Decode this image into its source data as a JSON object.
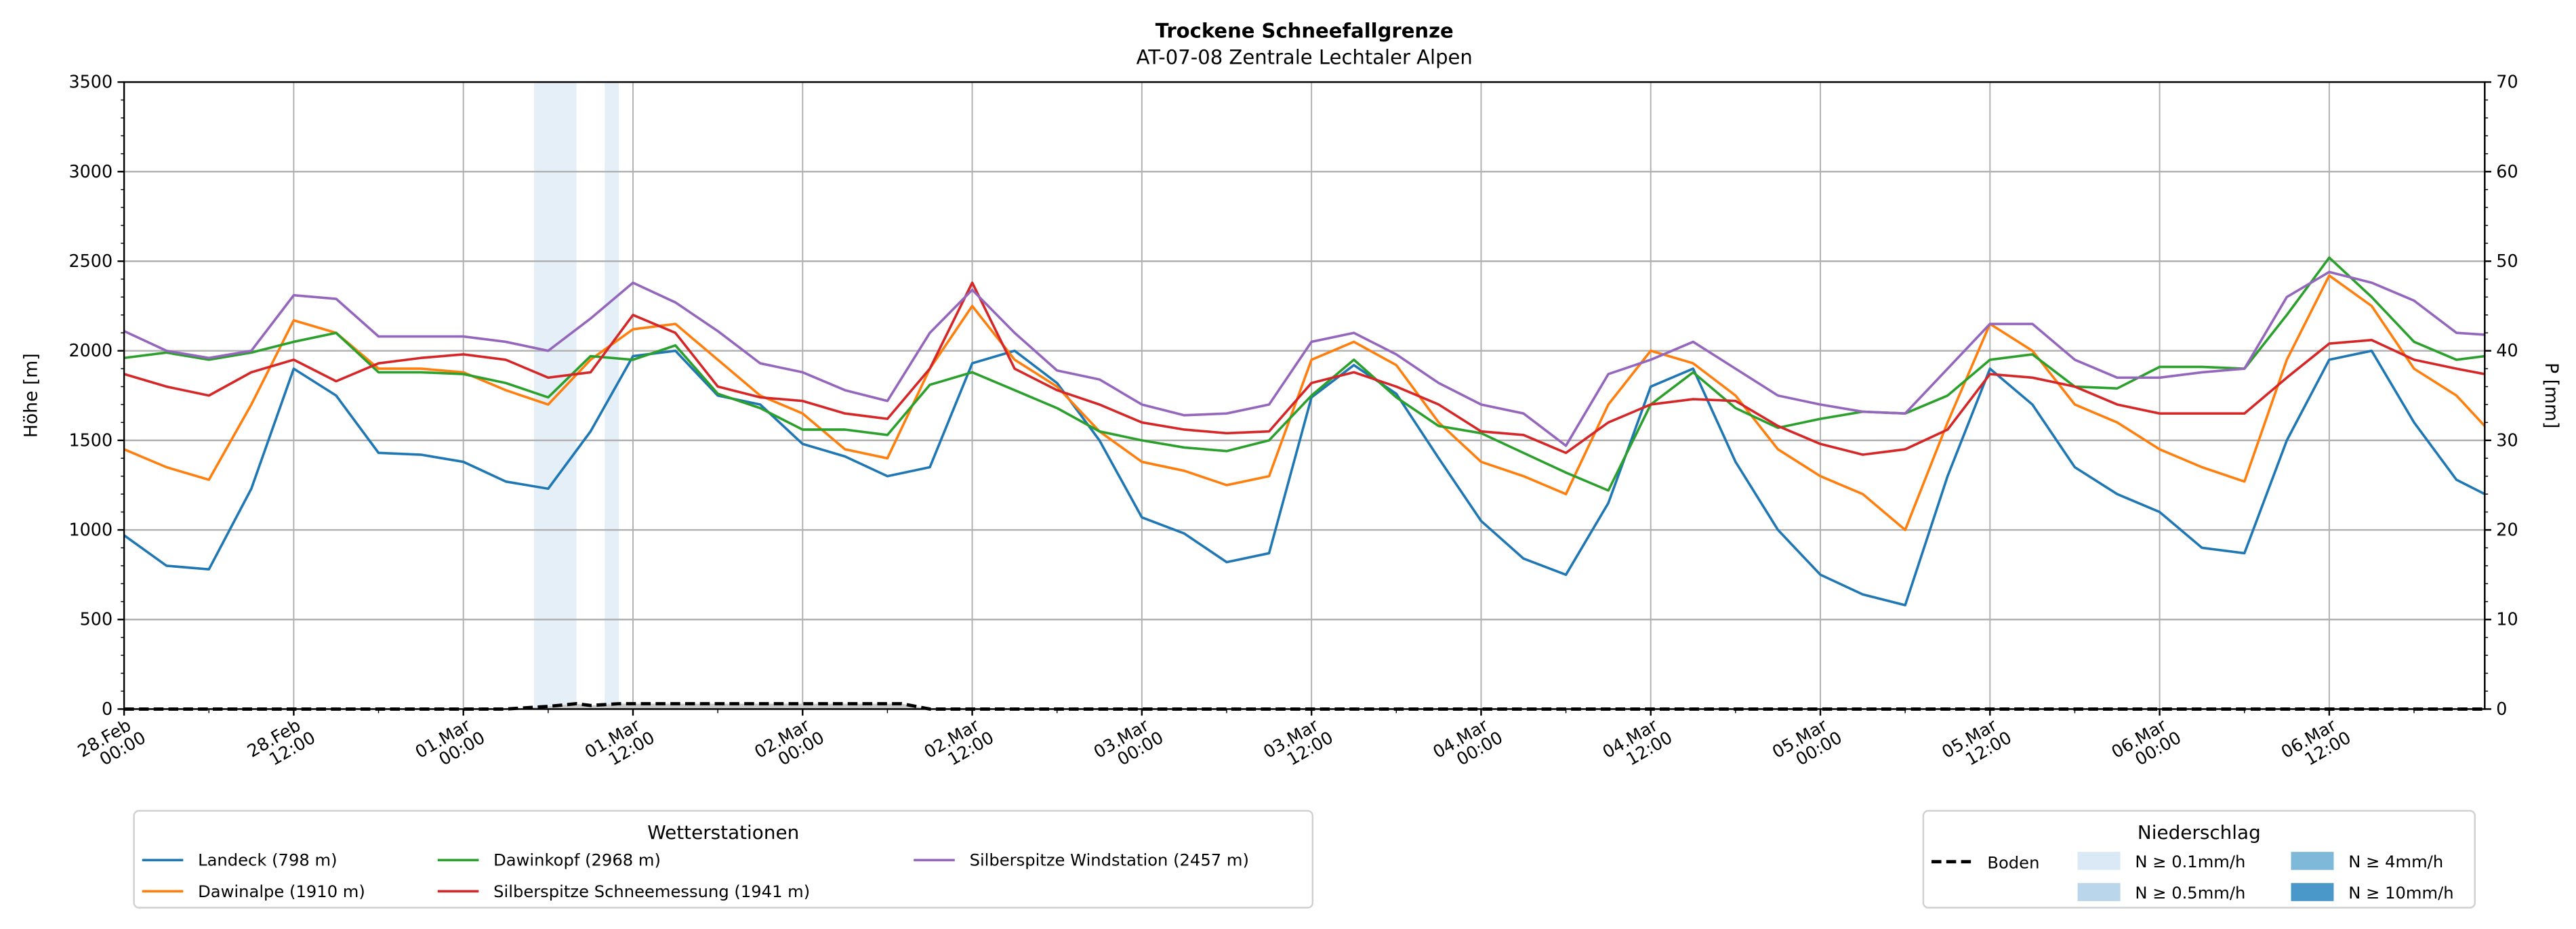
{
  "chart_data": {
    "type": "line",
    "title": "Trockene Schneefallgrenze",
    "subtitle": "AT-07-08 Zentrale Lechtaler Alpen",
    "ylabel": "Höhe [m]",
    "ylabel_right": "P [mm]",
    "ylim": [
      0,
      3500
    ],
    "ylim_right": [
      0,
      70
    ],
    "yticks": [
      0,
      500,
      1000,
      1500,
      2000,
      2500,
      3000,
      3500
    ],
    "yticks_right": [
      0,
      10,
      20,
      30,
      40,
      50,
      60,
      70
    ],
    "x_unit": "hours since 28.Feb 00:00",
    "xlim": [
      0,
      167
    ],
    "xticks": [
      {
        "h": 0,
        "l1": "28.Feb",
        "l2": "00:00"
      },
      {
        "h": 12,
        "l1": "28.Feb",
        "l2": "12:00"
      },
      {
        "h": 24,
        "l1": "01.Mar",
        "l2": "00:00"
      },
      {
        "h": 36,
        "l1": "01.Mar",
        "l2": "12:00"
      },
      {
        "h": 48,
        "l1": "02.Mar",
        "l2": "00:00"
      },
      {
        "h": 60,
        "l1": "02.Mar",
        "l2": "12:00"
      },
      {
        "h": 72,
        "l1": "03.Mar",
        "l2": "00:00"
      },
      {
        "h": 84,
        "l1": "03.Mar",
        "l2": "12:00"
      },
      {
        "h": 96,
        "l1": "04.Mar",
        "l2": "00:00"
      },
      {
        "h": 108,
        "l1": "04.Mar",
        "l2": "12:00"
      },
      {
        "h": 120,
        "l1": "05.Mar",
        "l2": "00:00"
      },
      {
        "h": 132,
        "l1": "05.Mar",
        "l2": "12:00"
      },
      {
        "h": 144,
        "l1": "06.Mar",
        "l2": "00:00"
      },
      {
        "h": 156,
        "l1": "06.Mar",
        "l2": "12:00"
      }
    ],
    "grid": true,
    "x": [
      0,
      3,
      6,
      9,
      12,
      15,
      18,
      21,
      24,
      27,
      30,
      33,
      36,
      39,
      42,
      45,
      48,
      51,
      54,
      57,
      60,
      63,
      66,
      69,
      72,
      75,
      78,
      81,
      84,
      87,
      90,
      93,
      96,
      99,
      102,
      105,
      108,
      111,
      114,
      117,
      120,
      123,
      126,
      129,
      132,
      135,
      138,
      141,
      144,
      147,
      150,
      153,
      156,
      159,
      162,
      165,
      167
    ],
    "series": [
      {
        "name": "Landeck (798 m)",
        "color": "#1f77b4",
        "values": [
          970,
          800,
          780,
          1230,
          1900,
          1750,
          1430,
          1420,
          1380,
          1270,
          1230,
          1550,
          1970,
          2000,
          1750,
          1700,
          1480,
          1410,
          1300,
          1350,
          1930,
          2000,
          1820,
          1500,
          1070,
          980,
          820,
          870,
          1740,
          1920,
          1760,
          1400,
          1050,
          840,
          750,
          1150,
          1800,
          1900,
          1380,
          1000,
          750,
          640,
          580,
          1300,
          1900,
          1700,
          1350,
          1200,
          1100,
          900,
          870,
          1500,
          1950,
          2000,
          1600,
          1280,
          1200
        ]
      },
      {
        "name": "Dawinalpe (1910 m)",
        "color": "#ff7f0e",
        "values": [
          1450,
          1350,
          1280,
          1700,
          2170,
          2100,
          1900,
          1900,
          1880,
          1780,
          1700,
          1950,
          2120,
          2150,
          1950,
          1750,
          1650,
          1450,
          1400,
          1900,
          2250,
          1950,
          1800,
          1550,
          1380,
          1330,
          1250,
          1300,
          1950,
          2050,
          1920,
          1600,
          1380,
          1300,
          1200,
          1700,
          2000,
          1930,
          1750,
          1450,
          1300,
          1200,
          1000,
          1600,
          2150,
          2000,
          1700,
          1600,
          1450,
          1350,
          1270,
          1950,
          2420,
          2250,
          1900,
          1750,
          1580
        ]
      },
      {
        "name": "Dawinkopf (2968 m)",
        "color": "#2ca02c",
        "values": [
          1960,
          1990,
          1950,
          1990,
          2050,
          2100,
          1880,
          1880,
          1870,
          1820,
          1740,
          1970,
          1950,
          2030,
          1760,
          1680,
          1560,
          1560,
          1530,
          1810,
          1880,
          1780,
          1680,
          1550,
          1500,
          1460,
          1440,
          1500,
          1750,
          1950,
          1740,
          1580,
          1540,
          1430,
          1320,
          1220,
          1700,
          1880,
          1680,
          1570,
          1620,
          1660,
          1650,
          1750,
          1950,
          1980,
          1800,
          1790,
          1910,
          1910,
          1900,
          2200,
          2520,
          2300,
          2050,
          1950,
          1970
        ]
      },
      {
        "name": "Silberspitze Schneemessung (1941 m)",
        "color": "#d62728",
        "values": [
          1870,
          1800,
          1750,
          1880,
          1950,
          1830,
          1930,
          1960,
          1980,
          1950,
          1850,
          1880,
          2200,
          2100,
          1800,
          1740,
          1720,
          1650,
          1620,
          1900,
          2380,
          1900,
          1780,
          1700,
          1600,
          1560,
          1540,
          1550,
          1820,
          1880,
          1800,
          1700,
          1550,
          1530,
          1430,
          1600,
          1700,
          1730,
          1720,
          1580,
          1480,
          1420,
          1450,
          1560,
          1870,
          1850,
          1800,
          1700,
          1650,
          1650,
          1650,
          1850,
          2040,
          2060,
          1950,
          1900,
          1870
        ]
      },
      {
        "name": "Silberspitze Windstation (2457 m)",
        "color": "#9467bd",
        "values": [
          2110,
          2000,
          1960,
          2000,
          2310,
          2290,
          2080,
          2080,
          2080,
          2050,
          2000,
          2180,
          2380,
          2270,
          2110,
          1930,
          1880,
          1780,
          1720,
          2100,
          2340,
          2100,
          1890,
          1840,
          1700,
          1640,
          1650,
          1700,
          2050,
          2100,
          1980,
          1820,
          1700,
          1650,
          1470,
          1870,
          1950,
          2050,
          1900,
          1750,
          1700,
          1660,
          1650,
          1900,
          2150,
          2150,
          1950,
          1850,
          1850,
          1880,
          1900,
          2300,
          2440,
          2380,
          2280,
          2100,
          2090
        ]
      }
    ],
    "precip": {
      "boden": {
        "name": "Boden",
        "h": [
          0,
          27,
          28,
          30,
          32,
          33,
          35,
          37,
          55,
          57,
          167
        ],
        "mm": [
          0,
          0,
          0.1,
          0.3,
          0.6,
          0.4,
          0.6,
          0.6,
          0.6,
          0,
          0
        ]
      },
      "intensity_bands": [
        {
          "from_h": 29,
          "to_h": 32,
          "class": "N ≥ 0.1mm/h"
        },
        {
          "from_h": 34,
          "to_h": 35,
          "class": "N ≥ 0.1mm/h"
        }
      ]
    },
    "legend_stations": {
      "title": "Wetterstationen",
      "placement": "bottom-left"
    },
    "legend_precip": {
      "title": "Niederschlag",
      "placement": "bottom-right",
      "boden_label": "Boden",
      "classes": [
        {
          "label": "N ≥ 0.1mm/h",
          "color": "#dbe9f6"
        },
        {
          "label": "N ≥ 0.5mm/h",
          "color": "#b9d6ea"
        },
        {
          "label": "N ≥ 4mm/h",
          "color": "#7fb9da"
        },
        {
          "label": "N ≥ 10mm/h",
          "color": "#4a98c9"
        }
      ]
    }
  }
}
